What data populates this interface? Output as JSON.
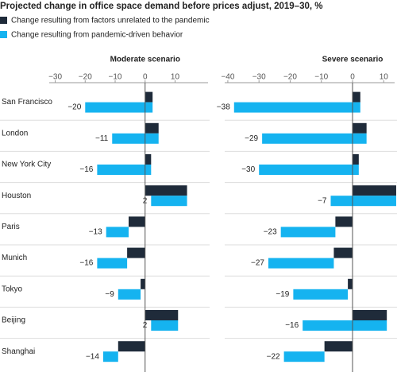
{
  "chart_data": {
    "type": "bar",
    "title": "Projected change in office space demand before prices adjust, 2019–30, %",
    "legend": [
      {
        "name": "Change resulting from factors unrelated to the pandemic",
        "color": "#1f2b3a"
      },
      {
        "name": "Change resulting from pandemic-driven behavior",
        "color": "#15b3f0"
      }
    ],
    "categories": [
      "San Francisco",
      "London",
      "New York City",
      "Houston",
      "Paris",
      "Munich",
      "Tokyo",
      "Beijing",
      "Shanghai"
    ],
    "panels": [
      {
        "title": "Moderate scenario",
        "xlim": [
          -32,
          21
        ],
        "xticks": [
          {
            "value": -30,
            "label": "−30"
          },
          {
            "value": -20,
            "label": "−20"
          },
          {
            "value": -10,
            "label": "−10"
          },
          0,
          10
        ],
        "series": [
          {
            "values": [
              2.5,
              4.5,
              2,
              14,
              -5.5,
              -6,
              -1.5,
              11,
              -9
            ]
          },
          {
            "values": [
              -22.5,
              -15.5,
              -18,
              -12,
              -7.5,
              -10,
              -7.5,
              -9,
              -5
            ]
          }
        ],
        "totals": [
          -20,
          -11,
          -16,
          2,
          -13,
          -16,
          -9,
          2,
          -14
        ],
        "total_labels": [
          "−20",
          "−11",
          "−16",
          "2",
          "−13",
          "−16",
          "−9",
          "2",
          "−14"
        ]
      },
      {
        "title": "Severe scenario",
        "xlim": [
          -41,
          13.5
        ],
        "xticks": [
          {
            "value": -40,
            "label": "−40"
          },
          {
            "value": -30,
            "label": "−30"
          },
          {
            "value": -20,
            "label": "−20"
          },
          {
            "value": -10,
            "label": "−10"
          },
          0,
          10
        ],
        "series": [
          {
            "values": [
              2.5,
              4.5,
              2,
              14,
              -5.5,
              -6,
              -1.5,
              11,
              -9
            ]
          },
          {
            "values": [
              -40.5,
              -33.5,
              -32,
              -21,
              -17.5,
              -21,
              -17.5,
              -27,
              -13
            ]
          }
        ],
        "totals": [
          -38,
          -29,
          -30,
          -7,
          -23,
          -27,
          -19,
          -16,
          -22
        ],
        "total_labels": [
          "−38",
          "−29",
          "−30",
          "−7",
          "−23",
          "−27",
          "−19",
          "−16",
          "−22"
        ]
      }
    ]
  }
}
